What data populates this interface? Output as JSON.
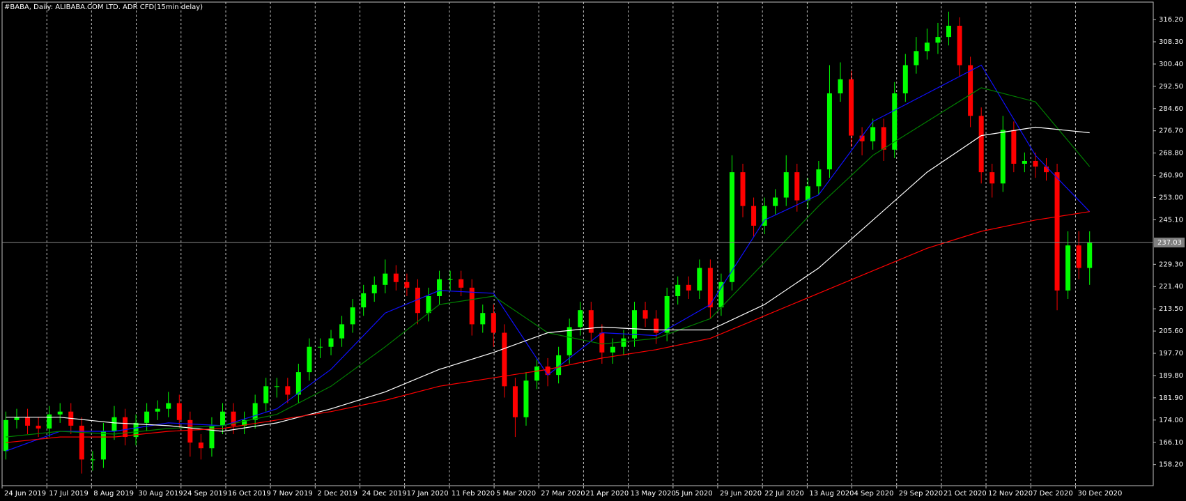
{
  "chart_data": {
    "type": "candlestick",
    "title": "#BABA, Daily:  ALIBABA.COM LTD. ADR CFD(15min delay)",
    "up_color": "#00ff00",
    "down_color": "#ff0000",
    "x": [
      0,
      1,
      2,
      3,
      4,
      5,
      6,
      7,
      8,
      9,
      10,
      11,
      12,
      13,
      14,
      15,
      16,
      17,
      18,
      19,
      20,
      21,
      22,
      23,
      24,
      25,
      26,
      27,
      28,
      29,
      30,
      31,
      32,
      33,
      34,
      35,
      36,
      37,
      38,
      39,
      40,
      41,
      42,
      43,
      44,
      45,
      46,
      47,
      48,
      49,
      50,
      51,
      52,
      53,
      54,
      55,
      56,
      57,
      58,
      59,
      60,
      61,
      62,
      63,
      64,
      65,
      66,
      67,
      68,
      69,
      70,
      71,
      72,
      73,
      74,
      75,
      76,
      77,
      78,
      79,
      80,
      81,
      82,
      83,
      84,
      85,
      86,
      87,
      88,
      89,
      90,
      91,
      92,
      93,
      94,
      95,
      96,
      97,
      98,
      99,
      100
    ],
    "open": [
      163,
      174,
      175,
      172,
      171,
      176,
      177,
      172,
      160,
      160,
      170,
      175,
      168,
      173,
      177,
      178,
      180,
      174,
      166,
      164,
      172,
      177,
      172,
      174,
      180,
      186,
      186,
      183,
      191,
      200,
      200,
      203,
      208,
      214,
      219,
      222,
      226,
      223,
      221,
      212,
      218,
      224,
      224,
      221,
      208,
      212,
      205,
      186,
      175,
      188,
      193,
      190,
      197,
      207,
      213,
      205,
      198,
      200,
      203,
      213,
      210,
      205,
      218,
      222,
      220,
      228,
      214,
      223,
      262,
      250,
      243,
      250,
      253,
      262,
      252,
      257,
      263,
      290,
      295,
      275,
      273,
      278,
      270,
      290,
      300,
      305,
      308,
      310,
      314,
      300,
      282,
      262,
      258,
      277,
      265,
      266,
      264,
      262,
      220,
      236,
      228
    ],
    "high": [
      177,
      178,
      178,
      175,
      179,
      180,
      180,
      175,
      163,
      173,
      179,
      178,
      176,
      180,
      181,
      184,
      183,
      177,
      169,
      175,
      180,
      180,
      177,
      183,
      189,
      189,
      189,
      194,
      203,
      203,
      206,
      211,
      217,
      222,
      225,
      231,
      229,
      226,
      224,
      221,
      227,
      227,
      227,
      224,
      215,
      215,
      208,
      189,
      191,
      196,
      196,
      200,
      210,
      216,
      216,
      208,
      203,
      206,
      216,
      216,
      213,
      221,
      225,
      225,
      231,
      231,
      226,
      268,
      265,
      253,
      253,
      256,
      268,
      265,
      260,
      266,
      300,
      301,
      298,
      278,
      281,
      281,
      294,
      304,
      310,
      313,
      315,
      319,
      317,
      303,
      285,
      265,
      282,
      280,
      269,
      269,
      267,
      265,
      241,
      241,
      241
    ],
    "low": [
      160,
      171,
      169,
      168,
      168,
      173,
      169,
      155,
      156,
      157,
      167,
      165,
      165,
      170,
      174,
      175,
      171,
      161,
      160,
      161,
      169,
      169,
      169,
      171,
      177,
      182,
      180,
      180,
      188,
      196,
      197,
      200,
      205,
      211,
      216,
      219,
      220,
      218,
      208,
      209,
      215,
      220,
      218,
      204,
      205,
      200,
      182,
      168,
      172,
      185,
      186,
      187,
      194,
      204,
      202,
      194,
      194,
      197,
      200,
      207,
      201,
      202,
      215,
      217,
      217,
      210,
      211,
      220,
      246,
      239,
      240,
      247,
      250,
      248,
      249,
      254,
      260,
      287,
      271,
      268,
      270,
      266,
      267,
      287,
      297,
      302,
      304,
      307,
      296,
      278,
      258,
      253,
      255,
      262,
      262,
      260,
      259,
      213,
      217,
      224,
      222
    ],
    "close": [
      174,
      175,
      172,
      171,
      176,
      177,
      172,
      160,
      160,
      170,
      175,
      168,
      173,
      177,
      178,
      180,
      174,
      166,
      164,
      172,
      177,
      172,
      174,
      180,
      186,
      186,
      183,
      191,
      200,
      200,
      203,
      208,
      214,
      219,
      222,
      226,
      223,
      221,
      212,
      218,
      224,
      224,
      221,
      208,
      212,
      205,
      186,
      175,
      188,
      193,
      190,
      197,
      207,
      213,
      205,
      198,
      200,
      203,
      213,
      210,
      205,
      218,
      222,
      220,
      228,
      214,
      223,
      262,
      250,
      243,
      250,
      253,
      262,
      252,
      257,
      263,
      290,
      295,
      275,
      273,
      278,
      270,
      290,
      300,
      305,
      308,
      310,
      314,
      300,
      282,
      262,
      258,
      277,
      265,
      266,
      264,
      262,
      220,
      236,
      228,
      237.03
    ],
    "ma_x": [
      0,
      5,
      10,
      15,
      20,
      25,
      30,
      35,
      40,
      45,
      50,
      55,
      60,
      65,
      70,
      75,
      80,
      85,
      90,
      95,
      100
    ],
    "lines": [
      {
        "color": "#1010ff",
        "values": [
          163,
          170,
          170,
          173,
          172,
          178,
          192,
          212,
          220,
          219,
          190,
          205,
          204,
          215,
          245,
          254,
          280,
          290,
          300,
          268,
          248
        ]
      },
      {
        "color": "#008000",
        "values": [
          168,
          170,
          169,
          171,
          172,
          176,
          186,
          200,
          215,
          218,
          205,
          201,
          203,
          210,
          230,
          250,
          268,
          280,
          292,
          287,
          264
        ]
      },
      {
        "color": "#ffffff",
        "values": [
          175,
          175,
          173,
          172,
          170,
          173,
          178,
          184,
          192,
          198,
          205,
          207,
          206,
          206,
          215,
          228,
          245,
          262,
          275,
          278,
          276
        ]
      },
      {
        "color": "#ff0000",
        "values": [
          166,
          168,
          168,
          170,
          171,
          174,
          177,
          181,
          186,
          189,
          192,
          196,
          199,
          203,
          211,
          219,
          227,
          235,
          241,
          245,
          248
        ]
      }
    ],
    "last_price": {
      "value": 237.03,
      "label": "237.03"
    },
    "xlim": [
      -0.35,
      105.87
    ],
    "ylim": [
      150.7,
      322.4
    ],
    "xticks": [
      {
        "value": -0.35,
        "label": "24 Jun 2019"
      },
      {
        "value": 3.78,
        "label": "17 Jul 2019"
      },
      {
        "value": 7.9,
        "label": "8 Aug 2019"
      },
      {
        "value": 12.03,
        "label": "30 Aug 2019"
      },
      {
        "value": 16.16,
        "label": "24 Sep 2019"
      },
      {
        "value": 20.29,
        "label": "16 Oct 2019"
      },
      {
        "value": 24.41,
        "label": "7 Nov 2019"
      },
      {
        "value": 28.54,
        "label": "2 Dec 2019"
      },
      {
        "value": 32.67,
        "label": "24 Dec 2019"
      },
      {
        "value": 36.79,
        "label": "17 Jan 2020"
      },
      {
        "value": 40.92,
        "label": "11 Feb 2020"
      },
      {
        "value": 45.05,
        "label": "5 Mar 2020"
      },
      {
        "value": 49.17,
        "label": "27 Mar 2020"
      },
      {
        "value": 53.3,
        "label": "21 Apr 2020"
      },
      {
        "value": 57.43,
        "label": "13 May 2020"
      },
      {
        "value": 61.56,
        "label": "5 Jun 2020"
      },
      {
        "value": 65.68,
        "label": "29 Jun 2020"
      },
      {
        "value": 69.81,
        "label": "22 Jul 2020"
      },
      {
        "value": 73.94,
        "label": "13 Aug 2020"
      },
      {
        "value": 78.06,
        "label": "4 Sep 2020"
      },
      {
        "value": 82.19,
        "label": "29 Sep 2020"
      },
      {
        "value": 86.32,
        "label": "21 Oct 2020"
      },
      {
        "value": 90.44,
        "label": "12 Nov 2020"
      },
      {
        "value": 94.57,
        "label": "7 Dec 2020"
      },
      {
        "value": 98.7,
        "label": "30 Dec 2020"
      }
    ],
    "yticks": [
      {
        "value": 316.2,
        "label": "316.20"
      },
      {
        "value": 308.3,
        "label": "308.30"
      },
      {
        "value": 300.4,
        "label": "300.40"
      },
      {
        "value": 292.5,
        "label": "292.50"
      },
      {
        "value": 284.6,
        "label": "284.60"
      },
      {
        "value": 276.7,
        "label": "276.70"
      },
      {
        "value": 268.8,
        "label": "268.80"
      },
      {
        "value": 260.9,
        "label": "260.90"
      },
      {
        "value": 253,
        "label": "253.00"
      },
      {
        "value": 245.1,
        "label": "245.10"
      },
      {
        "value": 229.3,
        "label": "229.30"
      },
      {
        "value": 221.4,
        "label": "221.40"
      },
      {
        "value": 213.5,
        "label": "213.50"
      },
      {
        "value": 205.6,
        "label": "205.60"
      },
      {
        "value": 197.7,
        "label": "197.70"
      },
      {
        "value": 189.8,
        "label": "189.80"
      },
      {
        "value": 181.9,
        "label": "181.90"
      },
      {
        "value": 174,
        "label": "174.00"
      },
      {
        "value": 166.1,
        "label": "166.10"
      },
      {
        "value": 158.2,
        "label": "158.20"
      }
    ],
    "grid": true
  }
}
